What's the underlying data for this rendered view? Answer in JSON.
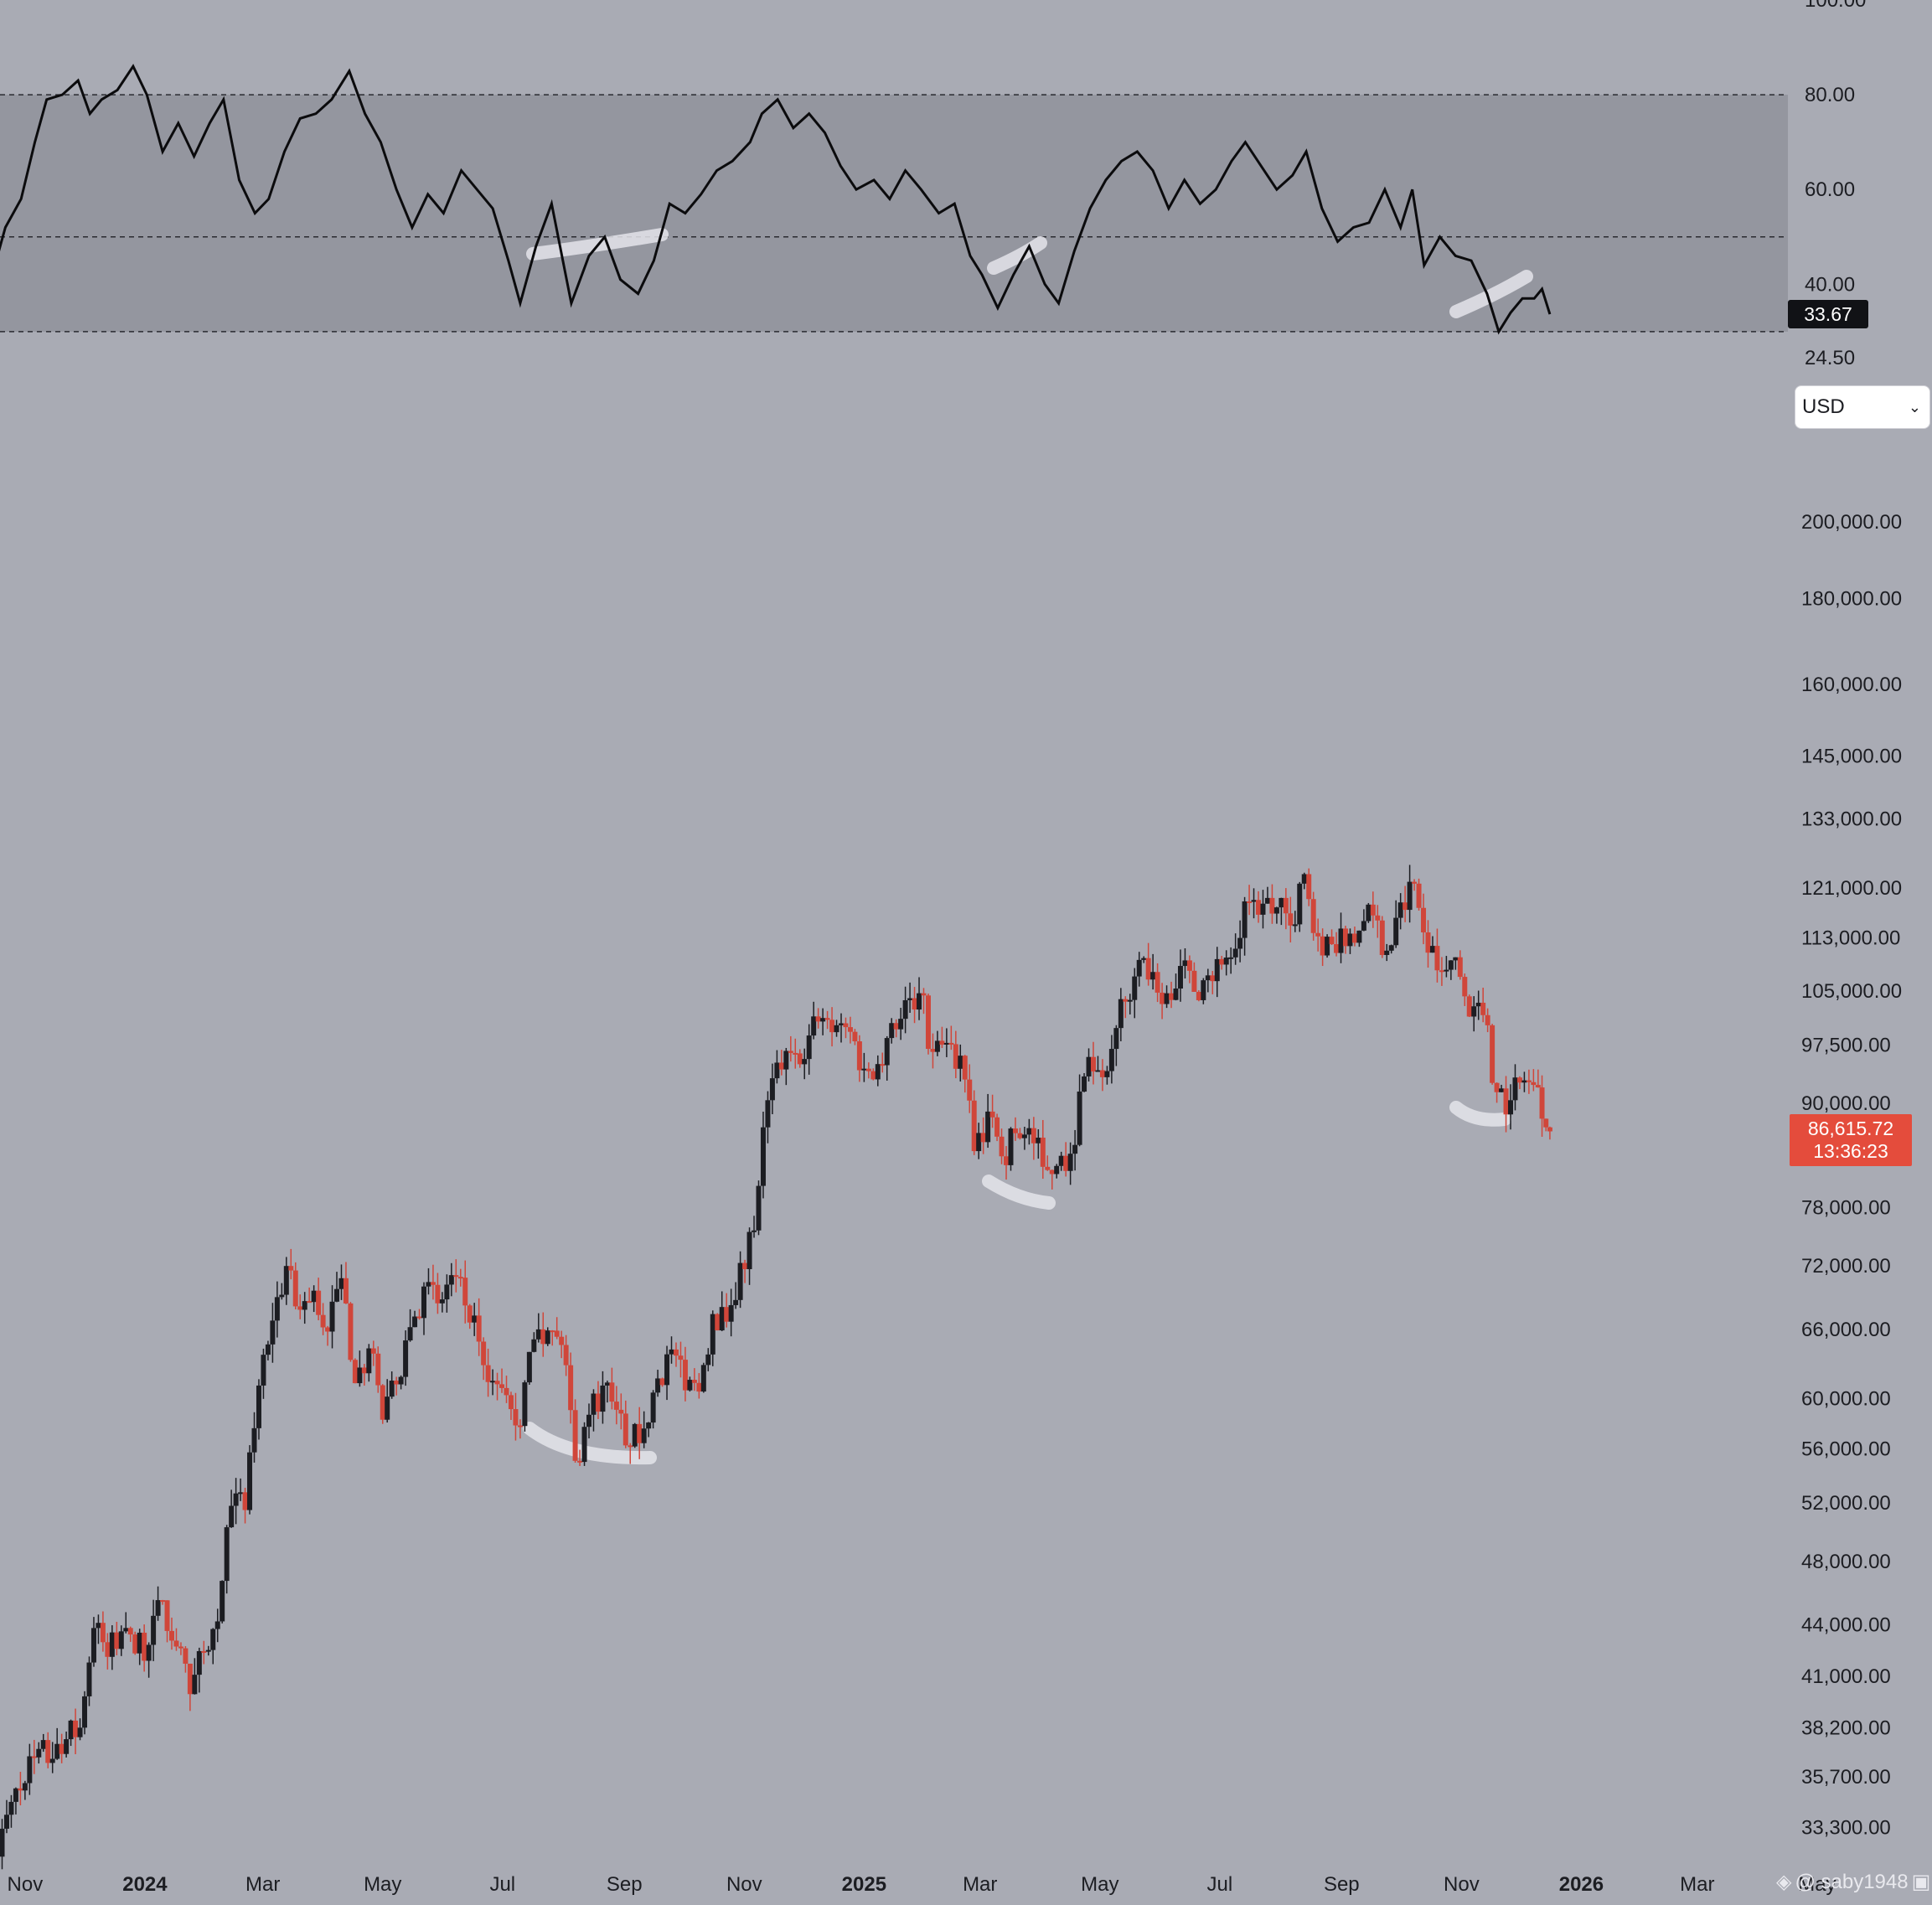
{
  "colors": {
    "background": "#a9abb4",
    "rsi_band": "#94969f",
    "rsi_line": "#0b0b0d",
    "bull": "#1c1d22",
    "bear": "#d0463a",
    "highlight": "#e4e4ea",
    "badge_red": "#e44c3c",
    "badge_black": "#111216"
  },
  "currency_select": {
    "value": "USD",
    "icon": "chevron-down-icon"
  },
  "price_badge": {
    "price": "86,615.72",
    "countdown": "13:36:23"
  },
  "rsi_badge": {
    "value": "33.67"
  },
  "watermark": {
    "text": "@ saby1948",
    "icon": "exchange-logo-icon",
    "trailing_icon": "camera-icon"
  },
  "chart_data": [
    {
      "type": "line",
      "name": "RSI",
      "ylim": [
        24.5,
        100
      ],
      "y_ticks": [
        "100.00",
        "80.00",
        "60.00",
        "40.00",
        "24.50"
      ],
      "levels": [
        80,
        50,
        30
      ],
      "last_value": 33.67,
      "x_range": [
        "2023-10-15",
        "2026-05-10"
      ],
      "points": [
        [
          "2023-10-16",
          43
        ],
        [
          "2023-10-22",
          52
        ],
        [
          "2023-10-30",
          58
        ],
        [
          "2023-11-06",
          70
        ],
        [
          "2023-11-12",
          79
        ],
        [
          "2023-11-20",
          80
        ],
        [
          "2023-11-28",
          83
        ],
        [
          "2023-12-04",
          76
        ],
        [
          "2023-12-10",
          79
        ],
        [
          "2023-12-18",
          81
        ],
        [
          "2023-12-26",
          86
        ],
        [
          "2024-01-02",
          80
        ],
        [
          "2024-01-10",
          68
        ],
        [
          "2024-01-18",
          74
        ],
        [
          "2024-01-26",
          67
        ],
        [
          "2024-02-03",
          74
        ],
        [
          "2024-02-10",
          79
        ],
        [
          "2024-02-18",
          62
        ],
        [
          "2024-02-26",
          55
        ],
        [
          "2024-03-04",
          58
        ],
        [
          "2024-03-12",
          68
        ],
        [
          "2024-03-20",
          75
        ],
        [
          "2024-03-28",
          76
        ],
        [
          "2024-04-05",
          79
        ],
        [
          "2024-04-14",
          85
        ],
        [
          "2024-04-22",
          76
        ],
        [
          "2024-04-30",
          70
        ],
        [
          "2024-05-08",
          60
        ],
        [
          "2024-05-16",
          52
        ],
        [
          "2024-05-24",
          59
        ],
        [
          "2024-06-01",
          55
        ],
        [
          "2024-06-10",
          64
        ],
        [
          "2024-06-18",
          60
        ],
        [
          "2024-06-26",
          56
        ],
        [
          "2024-07-04",
          45
        ],
        [
          "2024-07-10",
          36
        ],
        [
          "2024-07-18",
          48
        ],
        [
          "2024-07-26",
          57
        ],
        [
          "2024-08-05",
          36
        ],
        [
          "2024-08-14",
          46
        ],
        [
          "2024-08-22",
          50
        ],
        [
          "2024-08-30",
          41
        ],
        [
          "2024-09-08",
          38
        ],
        [
          "2024-09-16",
          45
        ],
        [
          "2024-09-24",
          57
        ],
        [
          "2024-10-02",
          55
        ],
        [
          "2024-10-10",
          59
        ],
        [
          "2024-10-18",
          64
        ],
        [
          "2024-10-26",
          66
        ],
        [
          "2024-11-04",
          70
        ],
        [
          "2024-11-10",
          76
        ],
        [
          "2024-11-18",
          79
        ],
        [
          "2024-11-26",
          73
        ],
        [
          "2024-12-04",
          76
        ],
        [
          "2024-12-12",
          72
        ],
        [
          "2024-12-20",
          65
        ],
        [
          "2024-12-28",
          60
        ],
        [
          "2025-01-06",
          62
        ],
        [
          "2025-01-14",
          58
        ],
        [
          "2025-01-22",
          64
        ],
        [
          "2025-01-30",
          60
        ],
        [
          "2025-02-08",
          55
        ],
        [
          "2025-02-16",
          57
        ],
        [
          "2025-02-24",
          46
        ],
        [
          "2025-03-02",
          42
        ],
        [
          "2025-03-10",
          35
        ],
        [
          "2025-03-18",
          42
        ],
        [
          "2025-03-26",
          48
        ],
        [
          "2025-04-03",
          40
        ],
        [
          "2025-04-10",
          36
        ],
        [
          "2025-04-18",
          47
        ],
        [
          "2025-04-26",
          56
        ],
        [
          "2025-05-04",
          62
        ],
        [
          "2025-05-12",
          66
        ],
        [
          "2025-05-20",
          68
        ],
        [
          "2025-05-28",
          64
        ],
        [
          "2025-06-05",
          56
        ],
        [
          "2025-06-13",
          62
        ],
        [
          "2025-06-21",
          57
        ],
        [
          "2025-06-29",
          60
        ],
        [
          "2025-07-07",
          66
        ],
        [
          "2025-07-14",
          70
        ],
        [
          "2025-07-22",
          65
        ],
        [
          "2025-07-30",
          60
        ],
        [
          "2025-08-07",
          63
        ],
        [
          "2025-08-14",
          68
        ],
        [
          "2025-08-22",
          56
        ],
        [
          "2025-08-30",
          49
        ],
        [
          "2025-09-07",
          52
        ],
        [
          "2025-09-15",
          53
        ],
        [
          "2025-09-23",
          60
        ],
        [
          "2025-10-01",
          52
        ],
        [
          "2025-10-07",
          60
        ],
        [
          "2025-10-13",
          44
        ],
        [
          "2025-10-21",
          50
        ],
        [
          "2025-10-29",
          46
        ],
        [
          "2025-11-06",
          45
        ],
        [
          "2025-11-14",
          38
        ],
        [
          "2025-11-20",
          30
        ],
        [
          "2025-11-26",
          34
        ],
        [
          "2025-12-02",
          37
        ],
        [
          "2025-12-08",
          37
        ],
        [
          "2025-12-12",
          39
        ],
        [
          "2025-12-16",
          33.67
        ]
      ]
    },
    {
      "type": "candlestick",
      "name": "Price",
      "scale": "log",
      "ylim": [
        31500,
        215000
      ],
      "y_ticks": [
        200000,
        180000,
        160000,
        145000,
        133000,
        121000,
        113000,
        105000,
        97500,
        90000,
        78000,
        72000,
        66000,
        60000,
        56000,
        52000,
        48000,
        44000,
        41000,
        38200,
        35700,
        33300
      ],
      "y_tick_labels": [
        "200,000.00",
        "180,000.00",
        "160,000.00",
        "145,000.00",
        "133,000.00",
        "121,000.00",
        "113,000.00",
        "105,000.00",
        "97,500.00",
        "90,000.00",
        "78,000.00",
        "72,000.00",
        "66,000.00",
        "60,000.00",
        "56,000.00",
        "52,000.00",
        "48,000.00",
        "44,000.00",
        "41,000.00",
        "38,200.00",
        "35,700.00",
        "33,300.00"
      ],
      "x_range": [
        "2023-10-15",
        "2026-05-10"
      ],
      "x_ticks": [
        {
          "label": "Nov",
          "date": "2023-11-01",
          "bold": false
        },
        {
          "label": "2024",
          "date": "2024-01-01",
          "bold": true
        },
        {
          "label": "Mar",
          "date": "2024-03-01",
          "bold": false
        },
        {
          "label": "May",
          "date": "2024-05-01",
          "bold": false
        },
        {
          "label": "Jul",
          "date": "2024-07-01",
          "bold": false
        },
        {
          "label": "Sep",
          "date": "2024-09-01",
          "bold": false
        },
        {
          "label": "Nov",
          "date": "2024-11-01",
          "bold": false
        },
        {
          "label": "2025",
          "date": "2025-01-01",
          "bold": true
        },
        {
          "label": "Mar",
          "date": "2025-03-01",
          "bold": false
        },
        {
          "label": "May",
          "date": "2025-05-01",
          "bold": false
        },
        {
          "label": "Jul",
          "date": "2025-07-01",
          "bold": false
        },
        {
          "label": "Sep",
          "date": "2025-09-01",
          "bold": false
        },
        {
          "label": "Nov",
          "date": "2025-11-01",
          "bold": false
        },
        {
          "label": "2026",
          "date": "2026-01-01",
          "bold": true
        },
        {
          "label": "Mar",
          "date": "2026-03-01",
          "bold": false
        },
        {
          "label": "May",
          "date": "2026-05-01",
          "bold": false
        }
      ],
      "last_price": 86615.72,
      "closes": [
        [
          "2023-10-18",
          32000
        ],
        [
          "2023-10-25",
          34500
        ],
        [
          "2023-11-01",
          35400
        ],
        [
          "2023-11-08",
          37100
        ],
        [
          "2023-11-15",
          36600
        ],
        [
          "2023-11-22",
          37600
        ],
        [
          "2023-11-29",
          38200
        ],
        [
          "2023-12-06",
          43800
        ],
        [
          "2023-12-13",
          42100
        ],
        [
          "2023-12-20",
          43600
        ],
        [
          "2023-12-27",
          42300
        ],
        [
          "2024-01-03",
          42800
        ],
        [
          "2024-01-10",
          45500
        ],
        [
          "2024-01-17",
          42700
        ],
        [
          "2024-01-24",
          40000
        ],
        [
          "2024-01-31",
          42400
        ],
        [
          "2024-02-07",
          44200
        ],
        [
          "2024-02-14",
          51800
        ],
        [
          "2024-02-21",
          51500
        ],
        [
          "2024-02-28",
          61100
        ],
        [
          "2024-03-06",
          66800
        ],
        [
          "2024-03-13",
          72000
        ],
        [
          "2024-03-20",
          67800
        ],
        [
          "2024-03-27",
          69600
        ],
        [
          "2024-04-03",
          65800
        ],
        [
          "2024-04-10",
          70800
        ],
        [
          "2024-04-17",
          61300
        ],
        [
          "2024-04-24",
          64300
        ],
        [
          "2024-05-01",
          58300
        ],
        [
          "2024-05-08",
          61200
        ],
        [
          "2024-05-15",
          66200
        ],
        [
          "2024-05-22",
          70000
        ],
        [
          "2024-05-29",
          68400
        ],
        [
          "2024-06-05",
          71100
        ],
        [
          "2024-06-12",
          68200
        ],
        [
          "2024-06-19",
          64900
        ],
        [
          "2024-06-26",
          61500
        ],
        [
          "2024-07-03",
          60300
        ],
        [
          "2024-07-10",
          57800
        ],
        [
          "2024-07-17",
          65100
        ],
        [
          "2024-07-24",
          65900
        ],
        [
          "2024-07-31",
          64600
        ],
        [
          "2024-08-07",
          55100
        ],
        [
          "2024-08-14",
          58700
        ],
        [
          "2024-08-21",
          61100
        ],
        [
          "2024-08-28",
          59100
        ],
        [
          "2024-09-04",
          56200
        ],
        [
          "2024-09-11",
          57600
        ],
        [
          "2024-09-18",
          61700
        ],
        [
          "2024-09-25",
          64200
        ],
        [
          "2024-10-02",
          60700
        ],
        [
          "2024-10-09",
          60600
        ],
        [
          "2024-10-16",
          67400
        ],
        [
          "2024-10-23",
          66700
        ],
        [
          "2024-10-30",
          72300
        ],
        [
          "2024-11-06",
          75600
        ],
        [
          "2024-11-13",
          90400
        ],
        [
          "2024-11-20",
          94300
        ],
        [
          "2024-11-27",
          96400
        ],
        [
          "2024-12-04",
          98800
        ],
        [
          "2024-12-11",
          101200
        ],
        [
          "2024-12-18",
          100200
        ],
        [
          "2024-12-25",
          99300
        ],
        [
          "2025-01-01",
          94400
        ],
        [
          "2025-01-08",
          95000
        ],
        [
          "2025-01-15",
          100500
        ],
        [
          "2025-01-22",
          103700
        ],
        [
          "2025-01-29",
          104700
        ],
        [
          "2025-02-05",
          96600
        ],
        [
          "2025-02-12",
          97800
        ],
        [
          "2025-02-19",
          96100
        ],
        [
          "2025-02-26",
          84300
        ],
        [
          "2025-03-05",
          89000
        ],
        [
          "2025-03-12",
          83700
        ],
        [
          "2025-03-19",
          86400
        ],
        [
          "2025-03-26",
          87000
        ],
        [
          "2025-04-02",
          82500
        ],
        [
          "2025-04-09",
          82600
        ],
        [
          "2025-04-16",
          84000
        ],
        [
          "2025-04-23",
          93400
        ],
        [
          "2025-04-30",
          94200
        ],
        [
          "2025-05-07",
          97000
        ],
        [
          "2025-05-14",
          103500
        ],
        [
          "2025-05-21",
          109600
        ],
        [
          "2025-05-28",
          107800
        ],
        [
          "2025-06-04",
          104700
        ],
        [
          "2025-06-11",
          108700
        ],
        [
          "2025-06-18",
          104900
        ],
        [
          "2025-06-25",
          107300
        ],
        [
          "2025-07-02",
          108900
        ],
        [
          "2025-07-09",
          111300
        ],
        [
          "2025-07-16",
          118700
        ],
        [
          "2025-07-23",
          118400
        ],
        [
          "2025-07-30",
          117800
        ],
        [
          "2025-08-06",
          114900
        ],
        [
          "2025-08-13",
          123300
        ],
        [
          "2025-08-20",
          113200
        ],
        [
          "2025-08-27",
          112000
        ],
        [
          "2025-09-03",
          111700
        ],
        [
          "2025-09-10",
          114100
        ],
        [
          "2025-09-17",
          116500
        ],
        [
          "2025-09-24",
          111000
        ],
        [
          "2025-10-01",
          118600
        ],
        [
          "2025-10-08",
          121700
        ],
        [
          "2025-10-15",
          110700
        ],
        [
          "2025-10-22",
          108000
        ],
        [
          "2025-10-29",
          110000
        ],
        [
          "2025-11-05",
          101400
        ],
        [
          "2025-11-12",
          101600
        ],
        [
          "2025-11-19",
          91400
        ],
        [
          "2025-11-26",
          90400
        ],
        [
          "2025-12-03",
          92900
        ],
        [
          "2025-12-10",
          92000
        ],
        [
          "2025-12-16",
          86615.72
        ]
      ]
    }
  ]
}
